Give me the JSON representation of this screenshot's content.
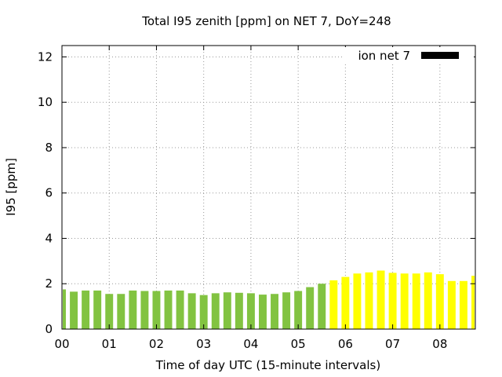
{
  "chart_data": {
    "type": "bar",
    "title": "Total I95 zenith [ppm] on NET 7, DoY=248",
    "xlabel": "Time of day UTC (15-minute intervals)",
    "ylabel": "I95 [ppm]",
    "ylim": [
      0,
      12.5
    ],
    "yticks": [
      0,
      2,
      4,
      6,
      8,
      10,
      12
    ],
    "xlim_hours": [
      0,
      8.75
    ],
    "xticks": [
      {
        "hour": 0,
        "label": "00"
      },
      {
        "hour": 1,
        "label": "01"
      },
      {
        "hour": 2,
        "label": "02"
      },
      {
        "hour": 3,
        "label": "03"
      },
      {
        "hour": 4,
        "label": "04"
      },
      {
        "hour": 5,
        "label": "05"
      },
      {
        "hour": 6,
        "label": "06"
      },
      {
        "hour": 7,
        "label": "07"
      },
      {
        "hour": 8,
        "label": "08"
      }
    ],
    "grid": true,
    "legend": {
      "label": "ion net 7",
      "color": "#000000",
      "position": "top-right"
    },
    "colors": {
      "low": "#82c341",
      "high": "#ffff00"
    },
    "color_threshold": 2.1,
    "interval_hours": 0.25,
    "values": [
      1.75,
      1.65,
      1.7,
      1.7,
      1.55,
      1.55,
      1.7,
      1.68,
      1.68,
      1.7,
      1.7,
      1.58,
      1.5,
      1.58,
      1.62,
      1.6,
      1.58,
      1.52,
      1.55,
      1.62,
      1.68,
      1.85,
      2.0,
      2.15,
      2.3,
      2.45,
      2.5,
      2.58,
      2.48,
      2.45,
      2.45,
      2.5,
      2.42,
      2.12,
      2.12,
      2.35
    ]
  }
}
